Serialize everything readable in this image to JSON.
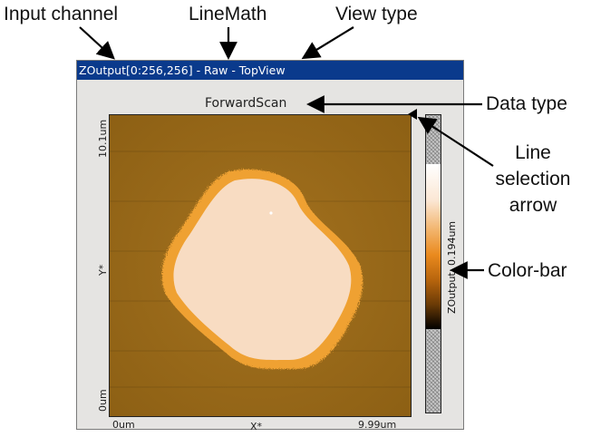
{
  "callouts": {
    "input_channel": "Input channel",
    "line_math": "LineMath",
    "view_type": "View type",
    "data_type": "Data type",
    "line_selection_arrow": "Line\nselection\narrow",
    "line_selection_1": "Line",
    "line_selection_2": "selection",
    "line_selection_3": "arrow",
    "color_bar": "Color-bar"
  },
  "window": {
    "title": "ZOutput[0:256,256] - Raw - TopView",
    "data_type_label": "ForwardScan"
  },
  "axes": {
    "x_min": "0um",
    "x_max": "9.99um",
    "x_label": "X*",
    "y_min": "0um",
    "y_max": "10.1um",
    "y_label": "Y*"
  },
  "colorbar": {
    "label": "ZOutput: 0.194um",
    "colors": [
      "#ffffff",
      "#fbe7d4",
      "#f2b46c",
      "#ea8a1e",
      "#b8650d",
      "#6b3b06",
      "#000000"
    ]
  },
  "image": {
    "background_color": "#9a6a1c",
    "feature_color": "#f7dcc3",
    "edge_color": "#f0a030",
    "description": "AFM topography scan"
  }
}
